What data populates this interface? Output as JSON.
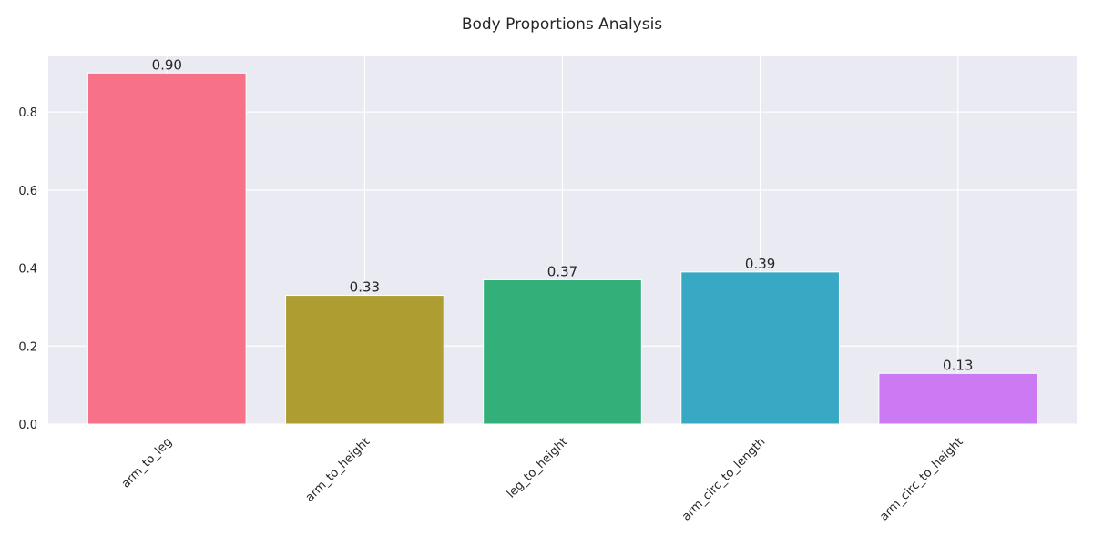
{
  "chart_data": {
    "type": "bar",
    "title": "Body Proportions Analysis",
    "xlabel": "",
    "ylabel": "",
    "categories": [
      "arm_to_leg",
      "arm_to_height",
      "leg_to_height",
      "arm_circ_to_length",
      "arm_circ_to_height"
    ],
    "values": [
      0.9,
      0.33,
      0.37,
      0.39,
      0.13
    ],
    "data_labels": [
      "0.90",
      "0.33",
      "0.37",
      "0.39",
      "0.13"
    ],
    "colors": [
      "#f77189",
      "#ae9d31",
      "#33b07a",
      "#38a9c5",
      "#cc7af4"
    ],
    "yticks": [
      0.0,
      0.2,
      0.4,
      0.6,
      0.8
    ],
    "ytick_labels": [
      "0.0",
      "0.2",
      "0.4",
      "0.6",
      "0.8"
    ],
    "ylim": [
      0,
      0.945
    ],
    "grid": true,
    "background": "#eaeaf2",
    "legend": "none"
  }
}
